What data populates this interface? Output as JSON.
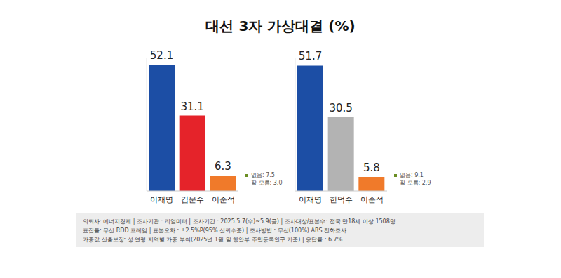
{
  "title": "대선 3자 가상대결 (%)",
  "chart_data": [
    {
      "type": "bar",
      "categories": [
        "이재명",
        "김문수",
        "이준석"
      ],
      "values": [
        52.1,
        31.1,
        6.3
      ],
      "colors": [
        "#1c4ea5",
        "#e5232a",
        "#f07a2a"
      ],
      "ylim": [
        0,
        55
      ],
      "grid": false,
      "data_labels": true,
      "tick_labels": "x",
      "annotations": [
        "없음: 7.5",
        "잘 모름: 3.0"
      ]
    },
    {
      "type": "bar",
      "categories": [
        "이재명",
        "한덕수",
        "이준석"
      ],
      "values": [
        51.7,
        30.5,
        5.8
      ],
      "colors": [
        "#1c4ea5",
        "#b3b3b3",
        "#f07a2a"
      ],
      "ylim": [
        0,
        55
      ],
      "grid": false,
      "data_labels": true,
      "tick_labels": "x",
      "annotations": [
        "없음: 9.1",
        "잘 모름: 2.9"
      ]
    }
  ],
  "footer": [
    "의뢰사: 에너지경제 | 조사기관 : 리얼미터 | 조사기간 : 2025.5.7(수)~5.9(금) | 조사대상/표본수: 전국 만18세 이상 1508명",
    "표집틀: 무선 RDD 프레임 | 표본오차 : ±2.5%P(95% 신뢰수준) | 조사방법 : 무선(100%) ARS 전화조사",
    "가중값 산출보정: 성·연령·지역별 가중 부여(2025년 1월 말 행안부 주민등록인구 기준) | 응답률 : 6.7%"
  ]
}
